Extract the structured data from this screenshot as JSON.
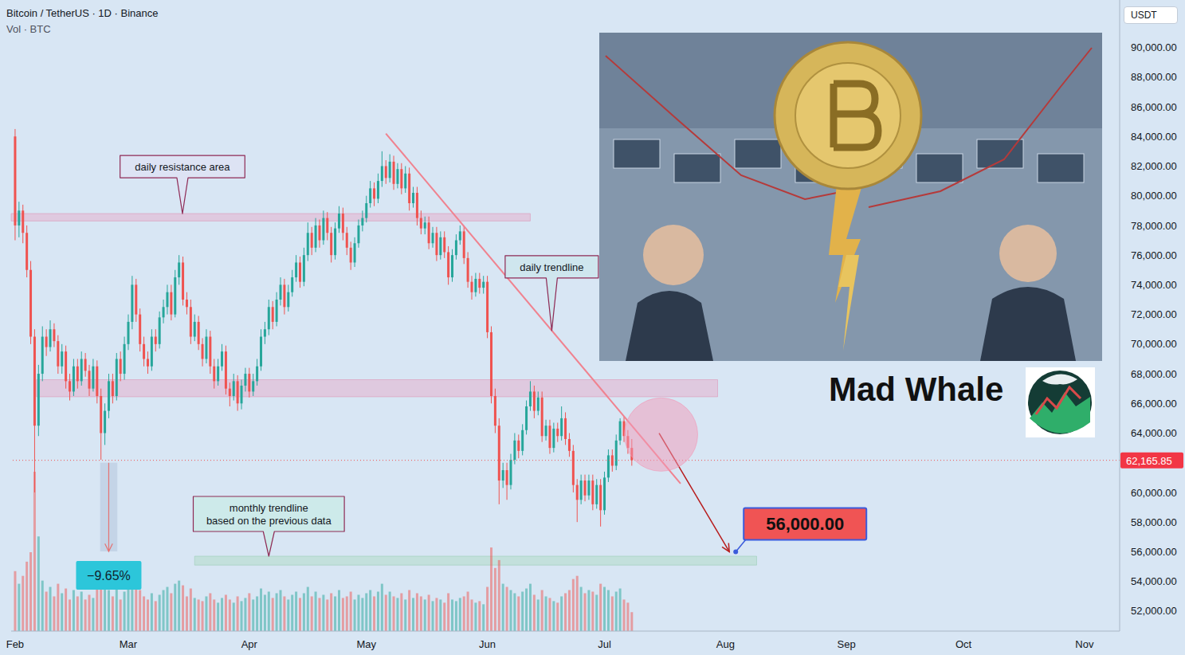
{
  "chart_data": {
    "type": "candlestick",
    "title": "Bitcoin / TetherUS · 1D · Binance",
    "subtitle": "Vol · BTC",
    "y_axis_label": "USDT",
    "x": [
      0,
      1,
      2,
      3,
      4,
      5,
      6,
      7,
      8,
      9,
      10,
      11,
      12,
      13,
      14,
      15,
      16,
      17,
      18,
      19,
      20,
      21,
      22,
      23,
      24,
      25,
      26,
      27,
      28,
      29,
      30,
      31,
      32,
      33,
      34,
      35,
      36,
      37,
      38,
      39,
      40,
      41,
      42,
      43,
      44,
      45,
      46,
      47,
      48,
      49,
      50,
      51,
      52,
      53,
      54,
      55,
      56,
      57,
      58,
      59,
      60,
      61,
      62,
      63,
      64,
      65,
      66,
      67,
      68,
      69,
      70,
      71,
      72,
      73,
      74,
      75,
      76,
      77,
      78,
      79,
      80,
      81,
      82,
      83,
      84,
      85,
      86,
      87,
      88,
      89,
      90,
      91,
      92,
      93,
      94,
      95,
      96,
      97,
      98,
      99,
      100,
      101,
      102,
      103,
      104,
      105,
      106,
      107,
      108,
      109,
      110,
      111,
      112,
      113,
      114,
      115,
      116,
      117,
      118,
      119,
      120,
      121,
      122,
      123,
      124,
      125,
      126,
      127,
      128,
      129,
      130,
      131,
      132,
      133,
      134,
      135,
      136,
      137,
      138,
      139,
      140,
      141,
      142,
      143,
      144,
      145,
      146,
      147,
      148,
      149,
      150,
      151,
      152,
      153,
      154,
      155,
      156,
      157,
      158
    ],
    "open": [
      84000,
      78000,
      79000,
      77500,
      75000,
      70500,
      64500,
      68000,
      70500,
      69800,
      71000,
      70200,
      68500,
      69500,
      67500,
      66800,
      68500,
      67500,
      69000,
      68200,
      67000,
      68500,
      66500,
      64000,
      65500,
      67500,
      66500,
      69000,
      68000,
      70000,
      71500,
      74000,
      72000,
      70000,
      69000,
      68500,
      70500,
      70000,
      71800,
      72500,
      73500,
      72000,
      74500,
      75500,
      73000,
      72500,
      70500,
      71500,
      70000,
      69000,
      70500,
      68500,
      67500,
      68500,
      69500,
      67000,
      66500,
      67500,
      66000,
      67200,
      68000,
      66800,
      67500,
      68500,
      70500,
      71000,
      72500,
      71500,
      73000,
      74000,
      72500,
      73500,
      74500,
      75500,
      74200,
      76000,
      77500,
      76500,
      78000,
      77000,
      78500,
      77500,
      76000,
      77800,
      78800,
      77500,
      76500,
      75500,
      76800,
      78000,
      78500,
      79500,
      80500,
      79800,
      81000,
      82000,
      81200,
      82300,
      80800,
      81800,
      80500,
      81500,
      79500,
      80200,
      78500,
      77800,
      78200,
      76800,
      77500,
      76000,
      77200,
      76200,
      74500,
      76000,
      77000,
      77600,
      75800,
      74200,
      73500,
      74400,
      73800,
      74200,
      70800,
      66500,
      64500,
      60800,
      61500,
      60500,
      62200,
      63500,
      62800,
      64200,
      65800,
      66800,
      65500,
      66400,
      63800,
      64500,
      63000,
      64300,
      63800,
      65000,
      63600,
      62800,
      60500,
      59500,
      60800,
      59800,
      60800,
      59200,
      60500,
      58800,
      61000,
      62500,
      61800,
      63500,
      64800,
      63800,
      63000
    ],
    "high": [
      84500,
      79600,
      79400,
      78000,
      75600,
      71000,
      68600,
      71200,
      71000,
      71600,
      71400,
      70600,
      70000,
      69900,
      68000,
      69000,
      69000,
      69500,
      69400,
      68600,
      69000,
      68900,
      67000,
      66000,
      68000,
      68000,
      69400,
      69500,
      70500,
      72000,
      74600,
      74400,
      72400,
      70500,
      69500,
      71000,
      71000,
      72200,
      73000,
      74000,
      74000,
      75000,
      76000,
      75900,
      73500,
      73000,
      72000,
      71900,
      70400,
      71000,
      70900,
      69000,
      69000,
      70000,
      69900,
      67400,
      68000,
      67900,
      67600,
      68400,
      68400,
      68000,
      69000,
      71000,
      71500,
      73000,
      72900,
      73500,
      74500,
      74400,
      74000,
      75000,
      76000,
      75900,
      76500,
      78200,
      77900,
      78500,
      78400,
      79000,
      78900,
      77900,
      78200,
      79300,
      79200,
      77900,
      76900,
      77200,
      78400,
      79000,
      80000,
      81000,
      80900,
      81500,
      83000,
      82400,
      82800,
      82700,
      82200,
      82200,
      82000,
      81900,
      80600,
      80600,
      79000,
      78600,
      78600,
      77900,
      77900,
      77600,
      77600,
      76600,
      76400,
      77400,
      78000,
      78000,
      76200,
      74600,
      74800,
      74800,
      74600,
      74600,
      71200,
      67000,
      65000,
      62000,
      62000,
      62600,
      64000,
      63900,
      64600,
      66200,
      67500,
      67200,
      66800,
      66800,
      64900,
      64900,
      64700,
      64700,
      65800,
      65400,
      64000,
      63200,
      60900,
      61200,
      61200,
      61200,
      61200,
      60900,
      60900,
      61400,
      62900,
      62900,
      63900,
      65000,
      65100,
      64200,
      63600
    ],
    "low": [
      77000,
      77200,
      76800,
      74500,
      70000,
      60000,
      63800,
      67500,
      69200,
      69500,
      69800,
      68000,
      68000,
      67000,
      66200,
      66500,
      67000,
      67200,
      67800,
      66500,
      66800,
      66000,
      62200,
      63200,
      65000,
      66000,
      66200,
      67500,
      67600,
      69600,
      71000,
      71500,
      69500,
      68500,
      68000,
      68200,
      69500,
      69700,
      71400,
      72000,
      71600,
      71800,
      74000,
      72600,
      72000,
      70000,
      70200,
      69600,
      68500,
      68700,
      68000,
      67000,
      67200,
      68200,
      66600,
      65800,
      66200,
      65500,
      65600,
      66800,
      66400,
      66500,
      67200,
      68200,
      70000,
      70600,
      71000,
      71200,
      72600,
      72000,
      72200,
      73200,
      74200,
      73800,
      73900,
      75600,
      76000,
      76200,
      76500,
      76700,
      77000,
      75500,
      75700,
      77500,
      77000,
      76000,
      75000,
      75200,
      76500,
      77600,
      78200,
      79200,
      79300,
      79500,
      80600,
      80800,
      80900,
      80400,
      80500,
      80100,
      80200,
      79000,
      79200,
      78000,
      77400,
      77400,
      76400,
      76500,
      75600,
      75700,
      75800,
      74000,
      74200,
      75700,
      76700,
      75400,
      73800,
      73000,
      73200,
      73400,
      73400,
      70400,
      66000,
      64000,
      59200,
      60300,
      59500,
      60200,
      61900,
      62300,
      62500,
      63900,
      65500,
      65000,
      65200,
      63400,
      63500,
      62600,
      62700,
      63400,
      63500,
      63200,
      62400,
      60000,
      58000,
      59200,
      59400,
      59500,
      58800,
      58900,
      57700,
      58500,
      60700,
      61400,
      61500,
      63200,
      63400,
      62600,
      61800
    ],
    "close": [
      78000,
      79000,
      77500,
      75000,
      70500,
      64500,
      68000,
      70500,
      69800,
      71000,
      70200,
      68500,
      69500,
      67500,
      66800,
      68500,
      67500,
      69000,
      68200,
      67000,
      68500,
      66500,
      64000,
      65500,
      67500,
      66500,
      69000,
      68000,
      70000,
      71500,
      74000,
      72000,
      70000,
      69000,
      68500,
      70500,
      70000,
      71800,
      72500,
      73500,
      72000,
      74500,
      75500,
      73000,
      72500,
      70500,
      71500,
      70000,
      69000,
      70500,
      68500,
      67500,
      68500,
      69500,
      67000,
      66500,
      67500,
      66000,
      67200,
      68000,
      66800,
      67500,
      68500,
      70500,
      71000,
      72500,
      71500,
      73000,
      74000,
      72500,
      73500,
      74500,
      75500,
      74200,
      76000,
      77500,
      76500,
      78000,
      77000,
      78500,
      77500,
      76000,
      77800,
      78800,
      77500,
      76500,
      75500,
      76800,
      78000,
      78500,
      79500,
      80500,
      79800,
      81000,
      82000,
      81200,
      82300,
      80800,
      81800,
      80500,
      81500,
      79500,
      80200,
      78500,
      77800,
      78200,
      76800,
      77500,
      76000,
      77200,
      76200,
      74500,
      76000,
      77000,
      77600,
      75800,
      74200,
      73500,
      74400,
      73800,
      74200,
      70800,
      66500,
      64500,
      60800,
      61500,
      60500,
      62200,
      63500,
      62800,
      64200,
      65800,
      66800,
      65500,
      66400,
      63800,
      64500,
      63000,
      64300,
      63800,
      65000,
      63600,
      62800,
      60500,
      59500,
      60800,
      59800,
      60800,
      59200,
      60500,
      58800,
      61000,
      62500,
      61800,
      63500,
      64800,
      63800,
      63000,
      62165.85
    ],
    "volume": [
      38000,
      30000,
      35000,
      44000,
      50000,
      101000,
      60000,
      32000,
      25000,
      28000,
      22000,
      30000,
      24000,
      27000,
      20000,
      26000,
      22000,
      25000,
      20000,
      23000,
      21000,
      28000,
      36000,
      30000,
      26000,
      22000,
      27000,
      20000,
      25000,
      28000,
      34000,
      30000,
      26000,
      22000,
      20000,
      24000,
      19000,
      23000,
      26000,
      28000,
      24000,
      30000,
      32000,
      29000,
      22000,
      27000,
      21000,
      20000,
      19000,
      22000,
      24000,
      20000,
      18000,
      21000,
      23000,
      20000,
      18000,
      22000,
      19000,
      21000,
      24000,
      20000,
      22000,
      27000,
      23000,
      25000,
      21000,
      24000,
      26000,
      22000,
      20000,
      23000,
      25000,
      21000,
      24000,
      28000,
      22000,
      25000,
      21000,
      23000,
      20000,
      24000,
      22000,
      26000,
      21000,
      22000,
      25000,
      20000,
      23000,
      21000,
      24000,
      26000,
      22000,
      25000,
      30000,
      23000,
      25000,
      22000,
      21000,
      24000,
      20000,
      26000,
      21000,
      24000,
      22000,
      20000,
      23000,
      19000,
      21000,
      20000,
      18000,
      24000,
      20000,
      19000,
      21000,
      22000,
      25000,
      20000,
      18000,
      19000,
      17000,
      28000,
      53000,
      40000,
      45000,
      30000,
      28000,
      26000,
      24000,
      22000,
      25000,
      27000,
      30000,
      23000,
      20000,
      26000,
      22000,
      21000,
      19000,
      18000,
      22000,
      24000,
      26000,
      33000,
      35000,
      28000,
      24000,
      26000,
      25000,
      23000,
      30000,
      28000,
      26000,
      22000,
      25000,
      27000,
      20000,
      18000,
      12000
    ],
    "xlim": [
      -1,
      283
    ],
    "xticks": [
      {
        "value": 0,
        "label": "Feb"
      },
      {
        "value": 29,
        "label": "Mar"
      },
      {
        "value": 60,
        "label": "Apr"
      },
      {
        "value": 90,
        "label": "May"
      },
      {
        "value": 121,
        "label": "Jun"
      },
      {
        "value": 151,
        "label": "Jul"
      },
      {
        "value": 182,
        "label": "Aug"
      },
      {
        "value": 213,
        "label": "Sep"
      },
      {
        "value": 243,
        "label": "Oct"
      },
      {
        "value": 274,
        "label": "Nov"
      }
    ],
    "ylim": [
      50650,
      93200
    ],
    "yticks": [
      {
        "value": 52000,
        "label": "52,000.00"
      },
      {
        "value": 54000,
        "label": "54,000.00"
      },
      {
        "value": 56000,
        "label": "56,000.00"
      },
      {
        "value": 58000,
        "label": "58,000.00"
      },
      {
        "value": 60000,
        "label": "60,000.00"
      },
      {
        "value": 64000,
        "label": "64,000.00"
      },
      {
        "value": 66000,
        "label": "66,000.00"
      },
      {
        "value": 68000,
        "label": "68,000.00"
      },
      {
        "value": 70000,
        "label": "70,000.00"
      },
      {
        "value": 72000,
        "label": "72,000.00"
      },
      {
        "value": 74000,
        "label": "74,000.00"
      },
      {
        "value": 76000,
        "label": "76,000.00"
      },
      {
        "value": 78000,
        "label": "78,000.00"
      },
      {
        "value": 80000,
        "label": "80,000.00"
      },
      {
        "value": 82000,
        "label": "82,000.00"
      },
      {
        "value": 84000,
        "label": "84,000.00"
      },
      {
        "value": 86000,
        "label": "86,000.00"
      },
      {
        "value": 88000,
        "label": "88,000.00"
      },
      {
        "value": 90000,
        "label": "90,000.00"
      }
    ],
    "y2lim": [
      0,
      400000
    ],
    "grid": false,
    "last_price": {
      "value": 62165.85,
      "label": "62,165.85"
    },
    "resistance_zones": [
      {
        "label": "daily resistance area",
        "x": [
          -1,
          132
        ],
        "y": [
          78300,
          78800
        ]
      },
      {
        "x": [
          5.5,
          180
        ],
        "y": [
          66450,
          67600
        ]
      }
    ],
    "support_zone": {
      "label": "monthly trendline\nbased on the previous data",
      "x": [
        46,
        190
      ],
      "y": [
        55100,
        55700
      ]
    },
    "trendline": {
      "label": "daily trendline",
      "from": [
        95,
        84200
      ],
      "to": [
        170.5,
        60600
      ]
    },
    "highlight": {
      "x": 165.5,
      "y": 63900
    },
    "measure": {
      "x": 24,
      "from": 62000,
      "to": 56017,
      "value": -9.65,
      "label": "−9.65%"
    },
    "target": {
      "from": [
        165,
        64000
      ],
      "to": [
        183,
        56000
      ],
      "value": 56000,
      "label": "56,000.00"
    },
    "brand": "Mad Whale"
  }
}
